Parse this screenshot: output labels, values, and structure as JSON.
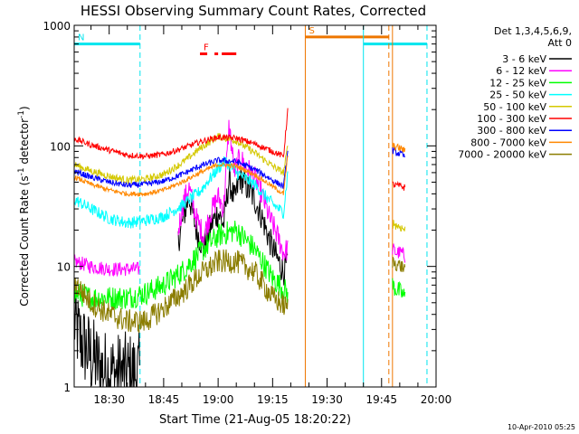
{
  "chart_data": {
    "type": "line",
    "title": "HESSI Observing Summary Count Rates, Corrected",
    "xlabel": "Start Time (21-Aug-05 18:20:22)",
    "ylabel": "Corrected Count Rate (s",
    "ylabel_sup1": "-1",
    "ylabel_mid": " detector",
    "ylabel_sup2": "-1",
    "ylabel_end": ")",
    "yscale": "log",
    "ylim": [
      1,
      1000
    ],
    "xlim": [
      "18:20:22",
      "20:00:00"
    ],
    "x_ticks": [
      "18:30",
      "18:45",
      "19:00",
      "19:15",
      "19:30",
      "19:45",
      "20:00"
    ],
    "y_ticks": [
      "1",
      "10",
      "100",
      "1000"
    ],
    "legend": {
      "placement": "right",
      "header1": "Det 1,3,4,5,6,9,",
      "header2": "Att 0",
      "entries": [
        {
          "label": "3 - 6 keV",
          "color": "#000000"
        },
        {
          "label": "6 - 12 keV",
          "color": "#ff00ff"
        },
        {
          "label": "12 - 25 keV",
          "color": "#00ff00"
        },
        {
          "label": "25 - 50 keV",
          "color": "#00ffff"
        },
        {
          "label": "50 - 100 keV",
          "color": "#d4c800"
        },
        {
          "label": "100 - 300 keV",
          "color": "#ff0000"
        },
        {
          "label": "300 - 800 keV",
          "color": "#0000ff"
        },
        {
          "label": "800 - 7000 keV",
          "color": "#ff8800"
        },
        {
          "label": "7000 - 20000 keV",
          "color": "#8b7d00"
        }
      ]
    },
    "series": [
      {
        "name": "3 - 6 keV",
        "color": "#000000",
        "noise": 0.35,
        "x": [
          "18:20:22",
          "18:22:00",
          "18:25:00",
          "18:28:00",
          "18:31:00",
          "18:34:00",
          "18:37:00",
          "18:38:30"
        ],
        "y": [
          3.5,
          2.5,
          1.8,
          1.4,
          1.3,
          1.3,
          1.3,
          1.3
        ]
      },
      {
        "name": "3 - 6 keV",
        "color": "#000000",
        "noise": 0.12,
        "x": [
          "18:49:00",
          "18:50:30",
          "18:52:00",
          "18:54:00",
          "18:56:00",
          "18:58:00",
          "19:00:00",
          "19:01:30",
          "19:03:00",
          "19:04:30",
          "19:06:00",
          "19:08:00",
          "19:10:00",
          "19:12:00",
          "19:14:00",
          "19:16:00",
          "19:18:00",
          "19:19:10"
        ],
        "y": [
          16,
          26,
          38,
          20,
          14,
          22,
          28,
          22,
          52,
          35,
          55,
          45,
          36,
          26,
          17,
          12,
          9,
          11
        ]
      },
      {
        "name": "6 - 12 keV",
        "color": "#ff00ff",
        "noise": 0.06,
        "x": [
          "18:20:22",
          "18:25:00",
          "18:30:00",
          "18:35:00",
          "18:38:30"
        ],
        "y": [
          11,
          10,
          9.5,
          9.5,
          9.5
        ]
      },
      {
        "name": "6 - 12 keV",
        "color": "#ff00ff",
        "noise": 0.1,
        "x": [
          "18:49:00",
          "18:50:30",
          "18:52:00",
          "18:54:00",
          "18:56:00",
          "18:58:00",
          "19:00:00",
          "19:01:30",
          "19:03:00",
          "19:04:30",
          "19:06:00",
          "19:08:00",
          "19:10:00",
          "19:12:00",
          "19:14:00",
          "19:16:00",
          "19:18:00",
          "19:19:10"
        ],
        "y": [
          20,
          35,
          45,
          25,
          18,
          28,
          38,
          30,
          150,
          60,
          80,
          65,
          55,
          40,
          26,
          19,
          13,
          14
        ]
      },
      {
        "name": "6 - 12 keV",
        "color": "#ff00ff",
        "noise": 0.06,
        "x": [
          "19:48:00",
          "19:49:00",
          "19:50:30",
          "19:51:30"
        ],
        "y": [
          14,
          13,
          13,
          12
        ]
      },
      {
        "name": "12 - 25 keV",
        "color": "#00ff00",
        "noise": 0.1,
        "x": [
          "18:20:22",
          "18:25:00",
          "18:30:00",
          "18:35:00",
          "18:40:00",
          "18:45:00",
          "18:50:00",
          "18:55:00",
          "19:00:00",
          "19:05:00",
          "19:10:00",
          "19:15:00",
          "19:19:10"
        ],
        "y": [
          6.0,
          5.5,
          5.5,
          5.5,
          6.0,
          7.0,
          9.0,
          13,
          18,
          20,
          14,
          8.0,
          6.0
        ]
      },
      {
        "name": "12 - 25 keV",
        "color": "#00ff00",
        "noise": 0.08,
        "x": [
          "19:48:00",
          "19:49:00",
          "19:50:30",
          "19:51:30"
        ],
        "y": [
          7.0,
          6.5,
          6.0,
          5.5
        ]
      },
      {
        "name": "25 - 50 keV",
        "color": "#00ffff",
        "noise": 0.05,
        "x": [
          "18:20:22",
          "18:25:00",
          "18:30:00",
          "18:35:00",
          "18:40:00",
          "18:45:00",
          "18:50:00",
          "18:55:00",
          "19:00:00",
          "19:02:00",
          "19:05:00",
          "19:10:00",
          "19:15:00",
          "19:18:00",
          "19:19:10"
        ],
        "y": [
          36,
          30,
          25,
          23,
          24,
          26,
          32,
          42,
          65,
          75,
          60,
          48,
          33,
          28,
          60
        ]
      },
      {
        "name": "50 - 100 keV",
        "color": "#d4c800",
        "noise": 0.03,
        "x": [
          "18:20:22",
          "18:25:00",
          "18:30:00",
          "18:35:00",
          "18:40:00",
          "18:45:00",
          "18:50:00",
          "18:55:00",
          "19:00:00",
          "19:05:00",
          "19:10:00",
          "19:15:00",
          "19:18:00",
          "19:19:10"
        ],
        "y": [
          70,
          62,
          56,
          52,
          53,
          58,
          72,
          95,
          120,
          110,
          88,
          68,
          60,
          100
        ]
      },
      {
        "name": "50 - 100 keV",
        "color": "#d4c800",
        "noise": 0.04,
        "x": [
          "19:48:00",
          "19:49:00",
          "19:50:30",
          "19:51:30"
        ],
        "y": [
          23,
          22,
          21,
          20
        ]
      },
      {
        "name": "100 - 300 keV",
        "color": "#ff0000",
        "noise": 0.025,
        "x": [
          "18:20:22",
          "18:25:00",
          "18:30:00",
          "18:35:00",
          "18:40:00",
          "18:45:00",
          "18:50:00",
          "18:55:00",
          "19:00:00",
          "19:05:00",
          "19:10:00",
          "19:15:00",
          "19:18:00",
          "19:19:10"
        ],
        "y": [
          115,
          102,
          92,
          84,
          82,
          85,
          95,
          108,
          118,
          116,
          104,
          90,
          82,
          200
        ]
      },
      {
        "name": "100 - 300 keV",
        "color": "#ff0000",
        "noise": 0.03,
        "x": [
          "19:48:00",
          "19:49:00",
          "19:50:30",
          "19:51:30"
        ],
        "y": [
          48,
          47,
          46,
          45
        ]
      },
      {
        "name": "300 - 800 keV",
        "color": "#0000ff",
        "noise": 0.025,
        "x": [
          "18:20:22",
          "18:25:00",
          "18:30:00",
          "18:35:00",
          "18:40:00",
          "18:45:00",
          "18:50:00",
          "18:55:00",
          "19:00:00",
          "19:05:00",
          "19:10:00",
          "19:15:00",
          "19:18:00",
          "19:19:10"
        ],
        "y": [
          62,
          55,
          50,
          47,
          48,
          51,
          58,
          68,
          76,
          74,
          64,
          52,
          46,
          90
        ]
      },
      {
        "name": "300 - 800 keV",
        "color": "#0000ff",
        "noise": 0.03,
        "x": [
          "19:48:00",
          "19:49:00",
          "19:50:30",
          "19:51:30"
        ],
        "y": [
          92,
          88,
          85,
          80
        ]
      },
      {
        "name": "800 - 7000 keV",
        "color": "#ff8800",
        "noise": 0.02,
        "x": [
          "18:20:22",
          "18:25:00",
          "18:30:00",
          "18:35:00",
          "18:40:00",
          "18:45:00",
          "18:50:00",
          "18:55:00",
          "19:00:00",
          "19:05:00",
          "19:10:00",
          "19:15:00",
          "19:18:00",
          "19:19:10"
        ],
        "y": [
          55,
          48,
          43,
          40,
          40,
          43,
          50,
          60,
          70,
          68,
          58,
          46,
          40,
          85
        ]
      },
      {
        "name": "800 - 7000 keV",
        "color": "#ff8800",
        "noise": 0.03,
        "x": [
          "19:48:00",
          "19:49:00",
          "19:50:30",
          "19:51:30"
        ],
        "y": [
          100,
          98,
          95,
          90
        ]
      },
      {
        "name": "7000 - 20000 keV",
        "color": "#8b7d00",
        "noise": 0.1,
        "x": [
          "18:20:22",
          "18:25:00",
          "18:30:00",
          "18:35:00",
          "18:40:00",
          "18:45:00",
          "18:50:00",
          "18:55:00",
          "19:00:00",
          "19:05:00",
          "19:10:00",
          "19:15:00",
          "19:19:10"
        ],
        "y": [
          7.5,
          5.0,
          4.0,
          3.5,
          3.5,
          4.5,
          6.0,
          8.5,
          11,
          11,
          9.0,
          5.5,
          4.5
        ]
      },
      {
        "name": "7000 - 20000 keV",
        "color": "#8b7d00",
        "noise": 0.06,
        "x": [
          "19:48:00",
          "19:49:00",
          "19:50:30",
          "19:51:30"
        ],
        "y": [
          11,
          10.5,
          10,
          9.5
        ]
      }
    ],
    "flag_bars": [
      {
        "label": "N",
        "color": "#00e5ee",
        "level": 700,
        "segments": [
          [
            "18:20:22",
            "18:38:30"
          ],
          [
            "19:40:00",
            "19:57:30"
          ]
        ]
      },
      {
        "label": "S",
        "color": "#ee7600",
        "level": 800,
        "segments": [
          [
            "19:24:00",
            "19:47:00"
          ]
        ]
      },
      {
        "label": "F",
        "color": "#ff0000",
        "level": 580,
        "segments": [
          [
            "18:55:00",
            "18:57:00"
          ],
          [
            "18:59:00",
            "19:00:00"
          ],
          [
            "19:01:00",
            "19:05:00"
          ]
        ]
      }
    ],
    "vlines": [
      {
        "t": "18:38:30",
        "color": "#00e5ee",
        "style": "dashed"
      },
      {
        "t": "19:24:00",
        "color": "#ee7600",
        "style": "solid"
      },
      {
        "t": "19:40:00",
        "color": "#00e5ee",
        "style": "solid"
      },
      {
        "t": "19:47:00",
        "color": "#ee7600",
        "style": "dashed"
      },
      {
        "t": "19:48:00",
        "color": "#ee7600",
        "style": "solid"
      },
      {
        "t": "19:57:30",
        "color": "#00e5ee",
        "style": "dashed"
      }
    ],
    "timestamp": "10-Apr-2010 05:25"
  }
}
